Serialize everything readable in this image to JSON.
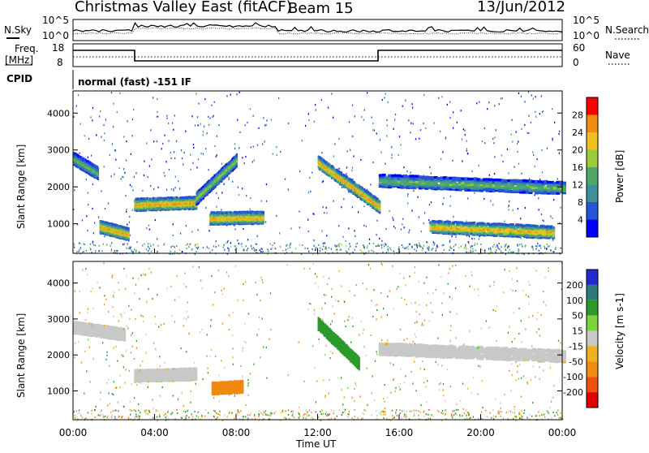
{
  "header": {
    "title": "Christmas Valley East (fitACF)",
    "beam": "Beam 15",
    "date": "13/Jun/2012"
  },
  "panels": {
    "nsky": {
      "left_label": "N.Sky",
      "right_label": "N.Search",
      "left_ticks": [
        "10^5",
        "10^0"
      ],
      "right_ticks": [
        "10^5",
        "10^0"
      ]
    },
    "freq": {
      "left_label_1": "Freq.",
      "left_label_2": "[MHz]",
      "left_ticks": [
        "18",
        "8"
      ],
      "right_label": "Nave",
      "right_ticks": [
        "60",
        "0"
      ]
    },
    "cpid": {
      "label": "CPID",
      "text": "normal (fast) -151 IF"
    }
  },
  "chart_data": [
    {
      "type": "heatmap",
      "name": "power",
      "ylabel": "Slant Range [km]",
      "ylim": [
        200,
        4600
      ],
      "yticks": [
        1000,
        2000,
        3000,
        4000
      ],
      "xlim": [
        0,
        24
      ],
      "xticks": [
        "00:00",
        "04:00",
        "08:00",
        "12:00",
        "16:00",
        "20:00",
        "00:00"
      ],
      "colorbar": {
        "label": "Power [dB]",
        "ticks": [
          "4",
          "8",
          "12",
          "16",
          "20",
          "24",
          "28"
        ],
        "range": [
          0,
          32
        ],
        "colors": [
          "#0000ff",
          "#2455d4",
          "#3f8f9e",
          "#4fa86a",
          "#9ccc3c",
          "#f0c020",
          "#f08a10",
          "#ff0000"
        ]
      },
      "features": [
        {
          "t_start": 0.0,
          "t_end": 1.2,
          "range_start": 2800,
          "range_end": 2400,
          "power": 16
        },
        {
          "t_start": 1.3,
          "t_end": 2.7,
          "range_start": 950,
          "range_end": 750,
          "power": 26
        },
        {
          "t_start": 3.0,
          "t_end": 6.0,
          "range_start": 1550,
          "range_end": 1600,
          "power": 26
        },
        {
          "t_start": 6.0,
          "t_end": 8.0,
          "range_start": 1700,
          "range_end": 2750,
          "power": 18
        },
        {
          "t_start": 6.7,
          "t_end": 9.3,
          "range_start": 1180,
          "range_end": 1200,
          "power": 25
        },
        {
          "t_start": 12.0,
          "t_end": 15.0,
          "range_start": 2700,
          "range_end": 1500,
          "power": 26
        },
        {
          "t_start": 15.0,
          "t_end": 24.0,
          "range_start": 2200,
          "range_end": 2000,
          "power": 16
        },
        {
          "t_start": 17.5,
          "t_end": 23.5,
          "range_start": 950,
          "range_end": 800,
          "power": 25
        }
      ]
    },
    {
      "type": "heatmap",
      "name": "velocity",
      "ylabel": "Slant Range [km]",
      "ylim": [
        200,
        4600
      ],
      "yticks": [
        1000,
        2000,
        3000,
        4000
      ],
      "xlim": [
        0,
        24
      ],
      "xticks": [
        "00:00",
        "04:00",
        "08:00",
        "12:00",
        "16:00",
        "20:00",
        "00:00"
      ],
      "xlabel": "Time UT",
      "colorbar": {
        "label": "Velocity [m s-1]",
        "ticks": [
          "200",
          "100",
          "50",
          "15",
          "-15",
          "-50",
          "-100",
          "-200"
        ],
        "colors": [
          "#1f2ad0",
          "#2d7a7a",
          "#2b9b2b",
          "#7ad23c",
          "#c8c8c8",
          "#f0b020",
          "#f08a10",
          "#f05010",
          "#e00000"
        ]
      },
      "features": [
        {
          "t_start": 0.0,
          "t_end": 2.5,
          "range_start": 2800,
          "range_end": 2600,
          "velocity": 0
        },
        {
          "t_start": 3.0,
          "t_end": 6.0,
          "range_start": 1450,
          "range_end": 1500,
          "velocity": 0
        },
        {
          "t_start": 6.8,
          "t_end": 8.3,
          "range_start": 1100,
          "range_end": 1150,
          "velocity": -60
        },
        {
          "t_start": 12.0,
          "t_end": 14.0,
          "range_start": 2900,
          "range_end": 1800,
          "velocity": 50
        },
        {
          "t_start": 15.0,
          "t_end": 24.0,
          "range_start": 2200,
          "range_end": 2000,
          "velocity": 0
        }
      ]
    }
  ]
}
